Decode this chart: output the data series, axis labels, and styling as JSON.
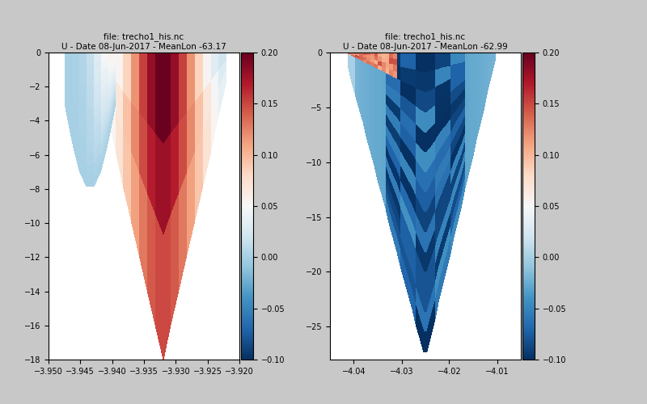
{
  "fig_title_left": "file: trecho1_his.nc\nU - Date 08-Jun-2017 - MeanLon -63.17",
  "fig_title_right": "file: trecho1_his.nc\nU - Date 08-Jun-2017 - MeanLon -62.99",
  "cmap": "RdBu_r",
  "vmin": -0.1,
  "vmax": 0.2,
  "colorbar_ticks": [
    -0.1,
    -0.05,
    0,
    0.05,
    0.1,
    0.15,
    0.2
  ],
  "left_xlim": [
    -3.95,
    -3.92
  ],
  "left_ylim": [
    -18,
    0
  ],
  "right_xlim": [
    -4.045,
    -4.005
  ],
  "right_ylim": [
    -28,
    0
  ],
  "bg_color": "#c8c8c8",
  "plot_bg": "#ffffff",
  "title_fontsize": 7.5,
  "tick_fontsize": 7
}
